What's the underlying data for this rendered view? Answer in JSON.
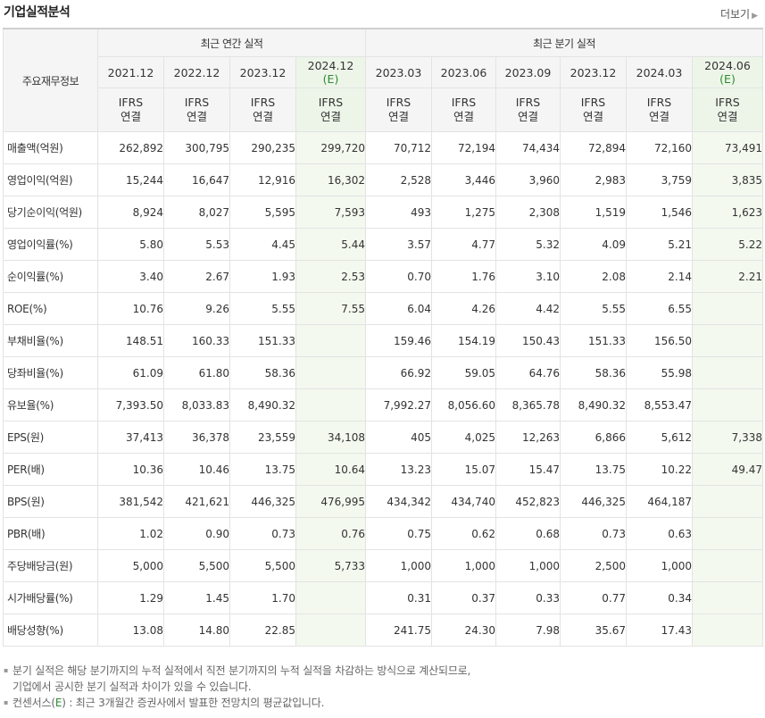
{
  "header": {
    "title": "기업실적분석",
    "more_label": "더보기",
    "more_icon": "chevron-right-icon"
  },
  "table": {
    "corner_label": "주요재무정보",
    "annual_group": "최근 연간 실적",
    "quarter_group": "최근 분기 실적",
    "periods": [
      "2021.12",
      "2022.12",
      "2023.12",
      "2024.12",
      "2023.03",
      "2023.06",
      "2023.09",
      "2023.12",
      "2024.03",
      "2024.06"
    ],
    "estimate_mark": "(E)",
    "ifrs_line1": "IFRS",
    "ifrs_line2": "연결",
    "rows": [
      {
        "label": "매출액(억원)",
        "values": [
          "262,892",
          "300,795",
          "290,235",
          "299,720",
          "70,712",
          "72,194",
          "74,434",
          "72,894",
          "72,160",
          "73,491"
        ]
      },
      {
        "label": "영업이익(억원)",
        "values": [
          "15,244",
          "16,647",
          "12,916",
          "16,302",
          "2,528",
          "3,446",
          "3,960",
          "2,983",
          "3,759",
          "3,835"
        ]
      },
      {
        "label": "당기순이익(억원)",
        "values": [
          "8,924",
          "8,027",
          "5,595",
          "7,593",
          "493",
          "1,275",
          "2,308",
          "1,519",
          "1,546",
          "1,623"
        ]
      },
      {
        "label": "영업이익률(%)",
        "values": [
          "5.80",
          "5.53",
          "4.45",
          "5.44",
          "3.57",
          "4.77",
          "5.32",
          "4.09",
          "5.21",
          "5.22"
        ]
      },
      {
        "label": "순이익률(%)",
        "values": [
          "3.40",
          "2.67",
          "1.93",
          "2.53",
          "0.70",
          "1.76",
          "3.10",
          "2.08",
          "2.14",
          "2.21"
        ]
      },
      {
        "label": "ROE(%)",
        "values": [
          "10.76",
          "9.26",
          "5.55",
          "7.55",
          "6.04",
          "4.26",
          "4.42",
          "5.55",
          "6.55",
          ""
        ]
      },
      {
        "label": "부채비율(%)",
        "values": [
          "148.51",
          "160.33",
          "151.33",
          "",
          "159.46",
          "154.19",
          "150.43",
          "151.33",
          "156.50",
          ""
        ]
      },
      {
        "label": "당좌비율(%)",
        "values": [
          "61.09",
          "61.80",
          "58.36",
          "",
          "66.92",
          "59.05",
          "64.76",
          "58.36",
          "55.98",
          ""
        ]
      },
      {
        "label": "유보율(%)",
        "values": [
          "7,393.50",
          "8,033.83",
          "8,490.32",
          "",
          "7,992.27",
          "8,056.60",
          "8,365.78",
          "8,490.32",
          "8,553.47",
          ""
        ]
      },
      {
        "label": "EPS(원)",
        "values": [
          "37,413",
          "36,378",
          "23,559",
          "34,108",
          "405",
          "4,025",
          "12,263",
          "6,866",
          "5,612",
          "7,338"
        ]
      },
      {
        "label": "PER(배)",
        "values": [
          "10.36",
          "10.46",
          "13.75",
          "10.64",
          "13.23",
          "15.07",
          "15.47",
          "13.75",
          "10.22",
          "49.47"
        ]
      },
      {
        "label": "BPS(원)",
        "values": [
          "381,542",
          "421,621",
          "446,325",
          "476,995",
          "434,342",
          "434,740",
          "452,823",
          "446,325",
          "464,187",
          ""
        ]
      },
      {
        "label": "PBR(배)",
        "values": [
          "1.02",
          "0.90",
          "0.73",
          "0.76",
          "0.75",
          "0.62",
          "0.68",
          "0.73",
          "0.63",
          ""
        ]
      },
      {
        "label": "주당배당금(원)",
        "values": [
          "5,000",
          "5,500",
          "5,500",
          "5,733",
          "1,000",
          "1,000",
          "1,000",
          "2,500",
          "1,000",
          ""
        ]
      },
      {
        "label": "시가배당률(%)",
        "values": [
          "1.29",
          "1.45",
          "1.70",
          "",
          "0.31",
          "0.37",
          "0.33",
          "0.77",
          "0.34",
          ""
        ]
      },
      {
        "label": "배당성향(%)",
        "values": [
          "13.08",
          "14.80",
          "22.85",
          "",
          "241.75",
          "24.30",
          "7.98",
          "35.67",
          "17.43",
          ""
        ]
      }
    ]
  },
  "notes": {
    "line1": "분기 실적은 해당 분기까지의 누적 실적에서 직전 분기까지의 누적 실적을 차감하는 방식으로 계산되므로,",
    "line2": "기업에서 공시한 분기 실적과 차이가 있을 수 있습니다.",
    "line3_prefix": "컨센서스(",
    "line3_mark": "E",
    "line3_suffix": ") : 최근 3개월간 증권사에서 발표한 전망치의 평균값입니다."
  },
  "colors": {
    "ifrs": "#ff5a00",
    "estimate_mark": "#2e8b2e",
    "estimate_bg": "#f3f9ef",
    "header_bg": "#f5f5f5"
  }
}
